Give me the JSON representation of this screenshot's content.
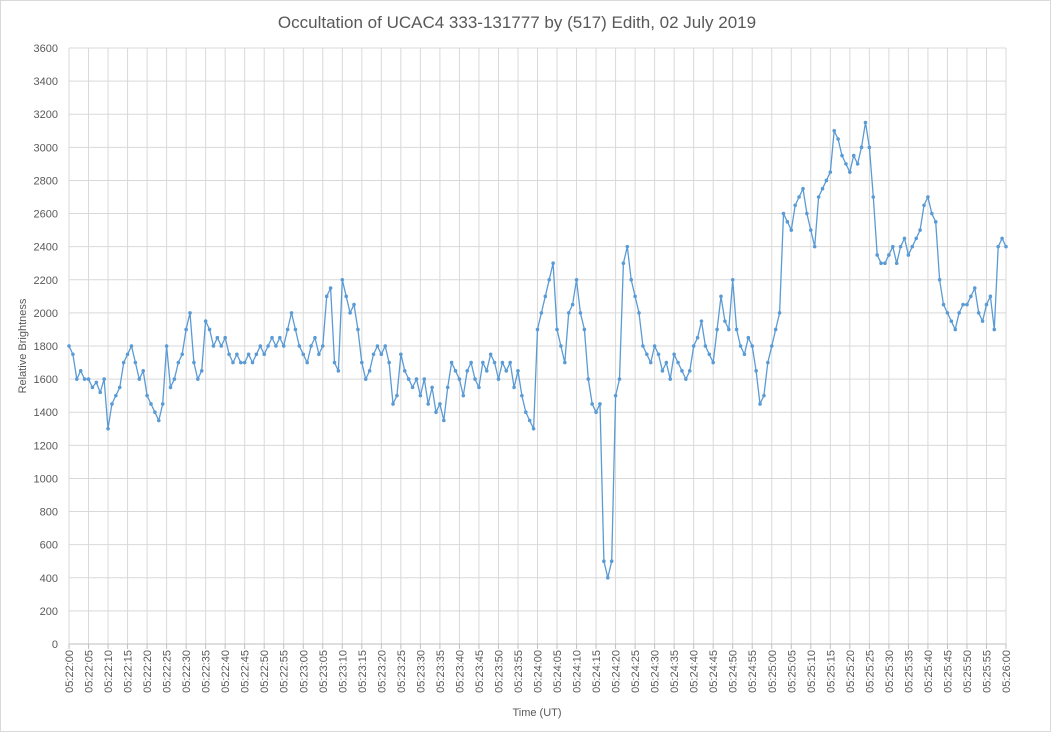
{
  "chart_data": {
    "type": "line",
    "title": "Occultation of UCAC4 333-131777 by (517) Edith, 02 July 2019",
    "x_label": "Time (UT)",
    "y_label": "Relative Brightness",
    "categories": [
      "05:22:00",
      null,
      null,
      null,
      null,
      "05:22:05",
      null,
      null,
      null,
      null,
      "05:22:10",
      null,
      null,
      null,
      null,
      "05:22:15",
      null,
      null,
      null,
      null,
      "05:22:20",
      null,
      null,
      null,
      null,
      "05:22:25",
      null,
      null,
      null,
      null,
      "05:22:30",
      null,
      null,
      null,
      null,
      "05:22:35",
      null,
      null,
      null,
      null,
      "05:22:40",
      null,
      null,
      null,
      null,
      "05:22:45",
      null,
      null,
      null,
      null,
      "05:22:50",
      null,
      null,
      null,
      null,
      "05:22:55",
      null,
      null,
      null,
      null,
      "05:23:00",
      null,
      null,
      null,
      null,
      "05:23:05",
      null,
      null,
      null,
      null,
      "05:23:10",
      null,
      null,
      null,
      null,
      "05:23:15",
      null,
      null,
      null,
      null,
      "05:23:20",
      null,
      null,
      null,
      null,
      "05:23:25",
      null,
      null,
      null,
      null,
      "05:23:30",
      null,
      null,
      null,
      null,
      "05:23:35",
      null,
      null,
      null,
      null,
      "05:23:40",
      null,
      null,
      null,
      null,
      "05:23:45",
      null,
      null,
      null,
      null,
      "05:23:50",
      null,
      null,
      null,
      null,
      "05:23:55",
      null,
      null,
      null,
      null,
      "05:24:00",
      null,
      null,
      null,
      null,
      "05:24:05",
      null,
      null,
      null,
      null,
      "05:24:10",
      null,
      null,
      null,
      null,
      "05:24:15",
      null,
      null,
      null,
      null,
      "05:24:20",
      null,
      null,
      null,
      null,
      "05:24:25",
      null,
      null,
      null,
      null,
      "05:24:30",
      null,
      null,
      null,
      null,
      "05:24:35",
      null,
      null,
      null,
      null,
      "05:24:40",
      null,
      null,
      null,
      null,
      "05:24:45",
      null,
      null,
      null,
      null,
      "05:24:50",
      null,
      null,
      null,
      null,
      "05:24:55",
      null,
      null,
      null,
      null,
      "05:25:00",
      null,
      null,
      null,
      null,
      "05:25:05",
      null,
      null,
      null,
      null,
      "05:25:10",
      null,
      null,
      null,
      null,
      "05:25:15",
      null,
      null,
      null,
      null,
      "05:25:20",
      null,
      null,
      null,
      null,
      "05:25:25",
      null,
      null,
      null,
      null,
      "05:25:30",
      null,
      null,
      null,
      null,
      "05:25:35",
      null,
      null,
      null,
      null,
      "05:25:40",
      null,
      null,
      null,
      null,
      "05:25:45",
      null,
      null,
      null,
      null,
      "05:25:50",
      null,
      null,
      null,
      null,
      "05:25:55",
      null,
      null,
      null,
      null,
      "05:26:00"
    ],
    "series": [
      {
        "name": "Relative Brightness",
        "color": "#5b9bd5",
        "values": [
          1800,
          1750,
          1600,
          1650,
          1600,
          1600,
          1550,
          1580,
          1520,
          1600,
          1300,
          1450,
          1500,
          1550,
          1700,
          1750,
          1800,
          1700,
          1600,
          1650,
          1500,
          1450,
          1400,
          1350,
          1450,
          1800,
          1550,
          1600,
          1700,
          1750,
          1900,
          2000,
          1700,
          1600,
          1650,
          1950,
          1900,
          1800,
          1850,
          1800,
          1850,
          1750,
          1700,
          1750,
          1700,
          1700,
          1750,
          1700,
          1750,
          1800,
          1750,
          1800,
          1850,
          1800,
          1850,
          1800,
          1900,
          2000,
          1900,
          1800,
          1750,
          1700,
          1800,
          1850,
          1750,
          1800,
          2100,
          2150,
          1700,
          1650,
          2200,
          2100,
          2000,
          2050,
          1900,
          1700,
          1600,
          1650,
          1750,
          1800,
          1750,
          1800,
          1700,
          1450,
          1500,
          1750,
          1650,
          1600,
          1550,
          1600,
          1500,
          1600,
          1450,
          1550,
          1400,
          1450,
          1350,
          1550,
          1700,
          1650,
          1600,
          1500,
          1650,
          1700,
          1600,
          1550,
          1700,
          1650,
          1750,
          1700,
          1600,
          1700,
          1650,
          1700,
          1550,
          1650,
          1500,
          1400,
          1350,
          1300,
          1900,
          2000,
          2100,
          2200,
          2300,
          1900,
          1800,
          1700,
          2000,
          2050,
          2200,
          2000,
          1900,
          1600,
          1450,
          1400,
          1450,
          500,
          400,
          500,
          1500,
          1600,
          2300,
          2400,
          2200,
          2100,
          2000,
          1800,
          1750,
          1700,
          1800,
          1750,
          1650,
          1700,
          1600,
          1750,
          1700,
          1650,
          1600,
          1650,
          1800,
          1850,
          1950,
          1800,
          1750,
          1700,
          1900,
          2100,
          1950,
          1900,
          2200,
          1900,
          1800,
          1750,
          1850,
          1800,
          1650,
          1450,
          1500,
          1700,
          1800,
          1900,
          2000,
          2600,
          2550,
          2500,
          2650,
          2700,
          2750,
          2600,
          2500,
          2400,
          2700,
          2750,
          2800,
          2850,
          3100,
          3050,
          2950,
          2900,
          2850,
          2950,
          2900,
          3000,
          3150,
          3000,
          2700,
          2350,
          2300,
          2300,
          2350,
          2400,
          2300,
          2400,
          2450,
          2350,
          2400,
          2450,
          2500,
          2650,
          2700,
          2600,
          2550,
          2200,
          2050,
          2000,
          1950,
          1900,
          2000,
          2050,
          2050,
          2100,
          2150,
          2000,
          1950,
          2050,
          2100,
          1900,
          2400,
          2450,
          2400
        ]
      }
    ],
    "ylim": [
      0,
      3600
    ],
    "yticks": [
      0,
      200,
      400,
      600,
      800,
      1000,
      1200,
      1400,
      1600,
      1800,
      2000,
      2200,
      2400,
      2600,
      2800,
      3000,
      3200,
      3400,
      3600
    ],
    "grid": true
  }
}
